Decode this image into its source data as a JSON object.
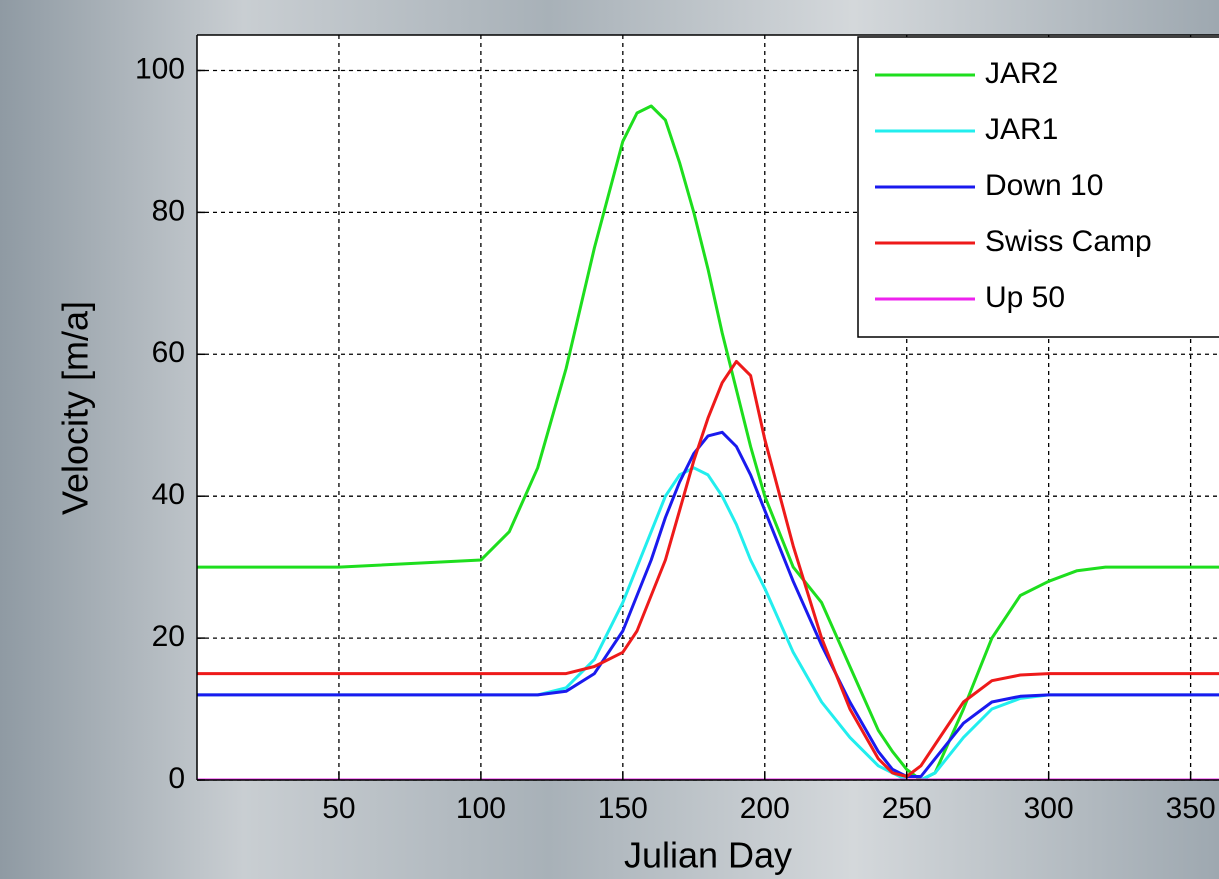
{
  "chart_data": {
    "type": "line",
    "xlabel": "Julian Day",
    "ylabel": "Velocity [m/a]",
    "x": [
      0,
      50,
      100,
      110,
      120,
      130,
      140,
      150,
      155,
      160,
      165,
      170,
      175,
      180,
      185,
      190,
      195,
      200,
      210,
      220,
      230,
      240,
      245,
      250,
      255,
      260,
      270,
      280,
      290,
      300,
      310,
      320,
      360
    ],
    "series": [
      {
        "name": "JAR2",
        "color": "#1ede1e",
        "values": [
          30,
          30,
          31,
          35,
          44,
          58,
          75,
          90,
          94,
          95,
          93,
          87,
          80,
          72,
          63,
          55,
          47,
          40,
          30,
          25,
          16,
          7,
          4,
          1.5,
          0,
          1,
          10,
          20,
          26,
          28,
          29.5,
          30,
          30
        ]
      },
      {
        "name": "JAR1",
        "color": "#22eeee",
        "values": [
          12,
          12,
          12,
          12,
          12,
          13,
          17,
          25,
          30,
          35,
          40,
          43,
          44,
          43,
          40,
          36,
          31,
          27,
          18,
          11,
          6,
          2,
          1,
          0,
          0,
          1,
          6,
          10,
          11.5,
          12,
          12,
          12,
          12
        ]
      },
      {
        "name": "Down 10",
        "color": "#1a1aee",
        "values": [
          12,
          12,
          12,
          12,
          12,
          12.5,
          15,
          21,
          26,
          31,
          37,
          42,
          46,
          48.5,
          49,
          47,
          43,
          38,
          28,
          19,
          11,
          4,
          1.5,
          0.5,
          0.5,
          3,
          8,
          11,
          11.8,
          12,
          12,
          12,
          12
        ]
      },
      {
        "name": "Swiss Camp",
        "color": "#ee1a1a",
        "values": [
          15,
          15,
          15,
          15,
          15,
          15,
          16,
          18,
          21,
          26,
          31,
          38,
          45,
          51,
          56,
          59,
          57,
          48,
          33,
          20,
          10,
          3,
          1,
          0.5,
          2,
          5,
          11,
          14,
          14.8,
          15,
          15,
          15,
          15
        ]
      },
      {
        "name": "Up 50",
        "color": "#ee22ee",
        "values": [
          0,
          0,
          0,
          0,
          0,
          0,
          0,
          0,
          0,
          0,
          0,
          0,
          0,
          0,
          0,
          0,
          0,
          0,
          0,
          0,
          0,
          0,
          0,
          0,
          0,
          0,
          0,
          0,
          0,
          0,
          0,
          0,
          0
        ]
      }
    ],
    "xlim": [
      0,
      360
    ],
    "ylim": [
      0,
      105
    ],
    "xticks": [
      50,
      100,
      150,
      200,
      250,
      300,
      350
    ],
    "yticks": [
      0,
      20,
      40,
      60,
      80,
      100
    ],
    "grid": true,
    "legend": "upper-right"
  }
}
